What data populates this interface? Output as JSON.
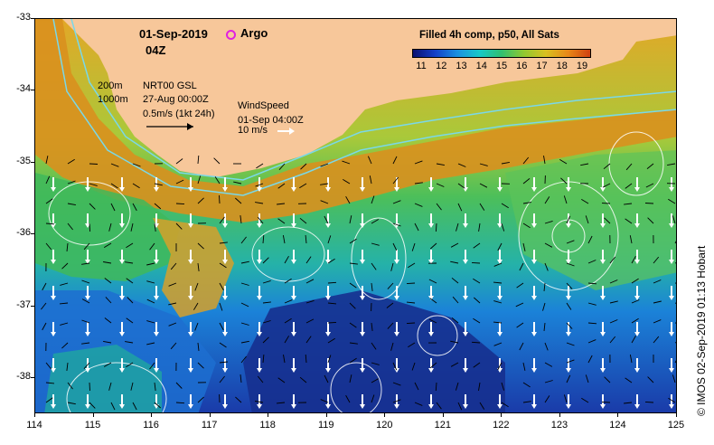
{
  "overlay": {
    "date": "01-Sep-2019",
    "time": "04Z",
    "argo_label": "Argo",
    "argo_color": "#e020e0",
    "colorbar_title": "Filled 4h comp, p50, All Sats",
    "colorbar_labels": [
      "11",
      "12",
      "13",
      "14",
      "15",
      "16",
      "17",
      "18",
      "19"
    ],
    "colorbar_colors": [
      "#0a1070",
      "#1440c8",
      "#1a90e0",
      "#18c8c8",
      "#30c070",
      "#90c830",
      "#d8c020",
      "#e88818",
      "#d04010"
    ],
    "depth_200": "200m",
    "depth_1000": "1000m",
    "current_source": "NRT00 GSL",
    "current_date": "27-Aug 00:00Z",
    "current_scale": "0.5m/s (1kt 24h)",
    "wind_title": "WindSpeed",
    "wind_date": "01-Sep 04:00Z",
    "wind_scale": "10 m/s",
    "credit": "© IMOS 02-Sep-2019 01:13 Hobart"
  },
  "axes": {
    "x_ticks": [
      "114",
      "115",
      "116",
      "117",
      "118",
      "119",
      "120",
      "121",
      "122",
      "123",
      "124",
      "125"
    ],
    "y_ticks": [
      "-33",
      "-34",
      "-35",
      "-36",
      "-37",
      "-38"
    ],
    "lon_range": [
      114,
      125
    ],
    "lat_range": [
      -38.5,
      -33
    ]
  },
  "map_colors": {
    "land": "#f7c79a",
    "warm_coastal": "#d48a1c",
    "shelf_orange": "#e3a727",
    "mid_green": "#4cbf5a",
    "cool_blue": "#1b82d8",
    "deep_blue": "#1a3aa8",
    "contour": "#7ad8e8"
  }
}
